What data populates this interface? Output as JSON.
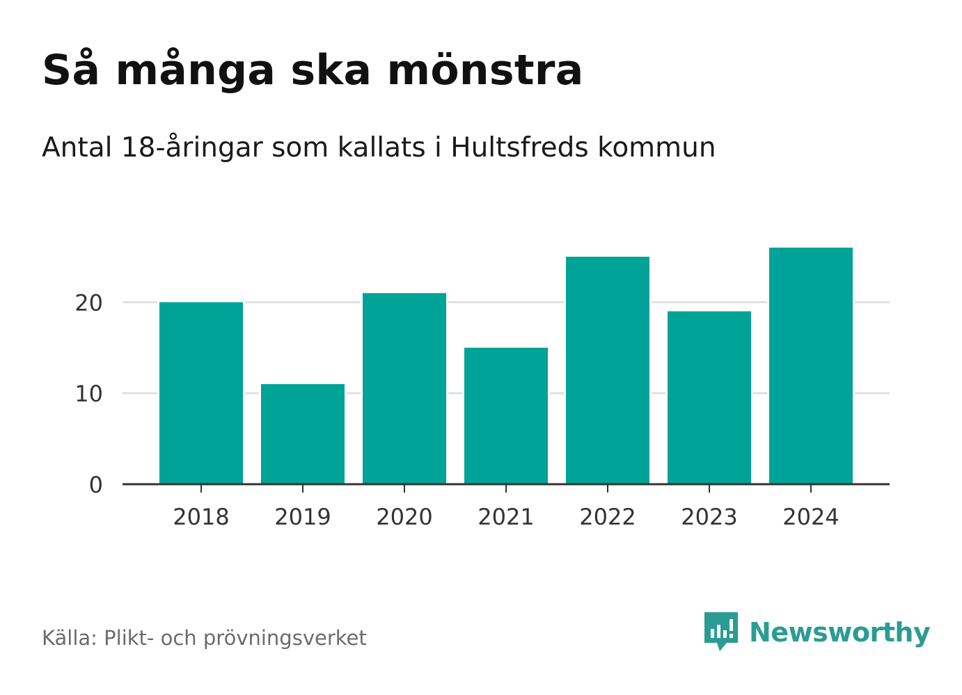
{
  "title": "Så många ska mönstra",
  "subtitle": "Antal 18-åringar som kallats i Hultsfreds kommun",
  "source": "Källa: Plikt- och prövningsverket",
  "brand": {
    "name": "Newsworthy",
    "icon": "newsworthy-logo-icon",
    "color": "#2b9c92"
  },
  "colors": {
    "bar": "#00a398",
    "grid": "#dcdcdc",
    "axis": "#333333",
    "text": "#333333"
  },
  "chart_data": {
    "type": "bar",
    "categories": [
      "2018",
      "2019",
      "2020",
      "2021",
      "2022",
      "2023",
      "2024"
    ],
    "values": [
      20,
      11,
      21,
      15,
      25,
      19,
      26
    ],
    "title": "Så många ska mönstra",
    "subtitle": "Antal 18-åringar som kallats i Hultsfreds kommun",
    "ylim": [
      0,
      26
    ],
    "yticks": [
      0,
      10,
      20
    ],
    "grid": true
  }
}
